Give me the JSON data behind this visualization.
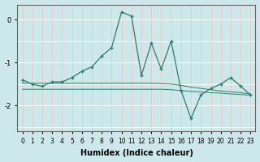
{
  "xlabel": "Humidex (Indice chaleur)",
  "bg_color": "#cce8ea",
  "grid_color_v": "#e8c8c8",
  "grid_color_h": "#ffffff",
  "line_color": "#2e7d6e",
  "x_values": [
    0,
    1,
    2,
    3,
    4,
    5,
    6,
    7,
    8,
    9,
    10,
    11,
    12,
    13,
    14,
    15,
    16,
    17,
    18,
    19,
    20,
    21,
    22,
    23
  ],
  "y_main": [
    -1.4,
    -1.5,
    -1.55,
    -1.45,
    -1.45,
    -1.35,
    -1.2,
    -1.1,
    -0.85,
    -0.65,
    0.18,
    0.08,
    -1.3,
    -0.55,
    -1.15,
    -0.5,
    -1.65,
    -2.3,
    -1.75,
    -1.6,
    -1.5,
    -1.35,
    -1.55,
    -1.75
  ],
  "y_reg1": [
    -1.62,
    -1.62,
    -1.62,
    -1.62,
    -1.62,
    -1.62,
    -1.62,
    -1.62,
    -1.62,
    -1.62,
    -1.62,
    -1.62,
    -1.62,
    -1.62,
    -1.62,
    -1.63,
    -1.65,
    -1.67,
    -1.68,
    -1.7,
    -1.71,
    -1.73,
    -1.74,
    -1.76
  ],
  "y_reg2": [
    -1.48,
    -1.48,
    -1.48,
    -1.48,
    -1.48,
    -1.48,
    -1.48,
    -1.48,
    -1.48,
    -1.48,
    -1.48,
    -1.48,
    -1.48,
    -1.48,
    -1.49,
    -1.5,
    -1.53,
    -1.57,
    -1.6,
    -1.63,
    -1.66,
    -1.68,
    -1.7,
    -1.73
  ],
  "ylim": [
    -2.6,
    0.35
  ],
  "yticks": [
    0,
    -1,
    -2
  ],
  "xlim": [
    -0.5,
    23.5
  ],
  "xtick_labels": [
    "0",
    "1",
    "2",
    "3",
    "4",
    "5",
    "6",
    "7",
    "8",
    "9",
    "10",
    "11",
    "12",
    "13",
    "14",
    "15",
    "16",
    "17",
    "18",
    "19",
    "20",
    "21",
    "22",
    "23"
  ],
  "spine_color": "#666666",
  "xlabel_fontsize": 7,
  "tick_fontsize": 5.5
}
